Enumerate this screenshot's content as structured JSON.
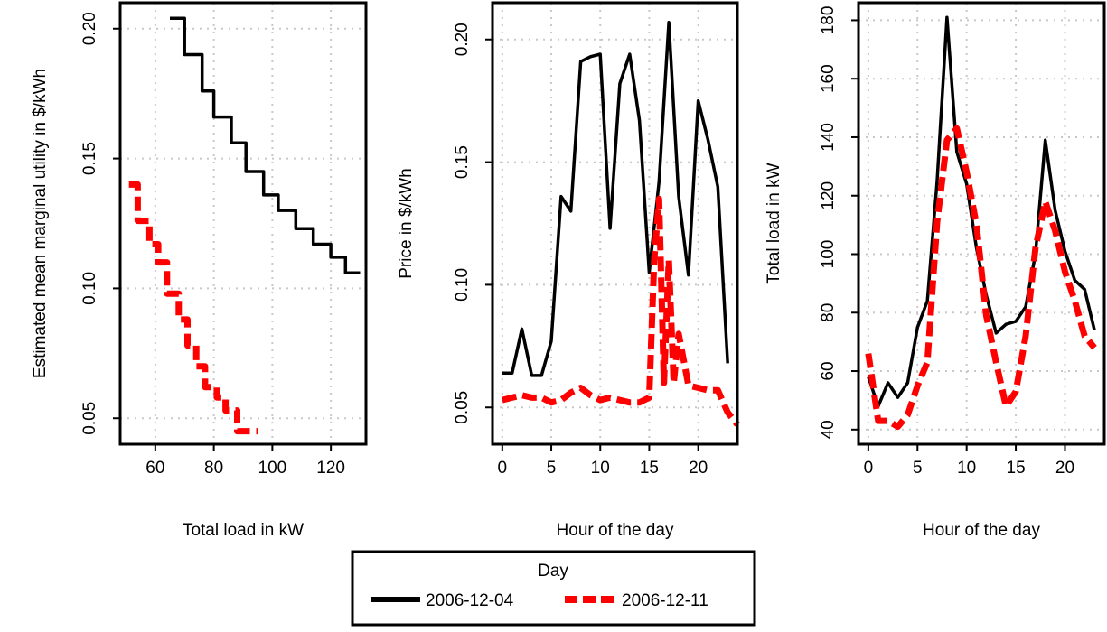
{
  "chart_data": [
    {
      "type": "line",
      "xlabel": "Total load in kW",
      "ylabel": "Estimated mean marginal utility in $/kWh",
      "xlim": [
        48,
        132
      ],
      "ylim": [
        0.04,
        0.21
      ],
      "xticks": [
        60,
        80,
        100,
        120
      ],
      "yticks": [
        0.05,
        0.1,
        0.15,
        0.2
      ],
      "ytick_labels": [
        "0.05",
        "0.10",
        "0.15",
        "0.20"
      ],
      "grid": true,
      "step": true,
      "series": [
        {
          "name": "2006-12-04",
          "color": "#000000",
          "x": [
            65,
            70,
            70,
            76,
            76,
            80,
            80,
            86,
            86,
            91,
            91,
            97,
            97,
            102,
            102,
            108,
            108,
            114,
            114,
            120,
            120,
            125,
            125,
            130
          ],
          "y": [
            0.204,
            0.204,
            0.19,
            0.19,
            0.176,
            0.176,
            0.166,
            0.166,
            0.156,
            0.156,
            0.145,
            0.145,
            0.136,
            0.136,
            0.13,
            0.13,
            0.123,
            0.123,
            0.117,
            0.117,
            0.112,
            0.112,
            0.106,
            0.106
          ]
        },
        {
          "name": "2006-12-11",
          "color": "#ff0000",
          "x": [
            51,
            54,
            54,
            58,
            58,
            61,
            61,
            64,
            64,
            68,
            68,
            71,
            71,
            74,
            74,
            77,
            77,
            81,
            81,
            84,
            84,
            88,
            88,
            91,
            91,
            95
          ],
          "y": [
            0.14,
            0.14,
            0.126,
            0.126,
            0.117,
            0.117,
            0.11,
            0.11,
            0.098,
            0.098,
            0.088,
            0.088,
            0.078,
            0.078,
            0.07,
            0.07,
            0.062,
            0.062,
            0.058,
            0.058,
            0.053,
            0.053,
            0.045,
            0.045,
            0.045,
            0.045
          ]
        }
      ]
    },
    {
      "type": "line",
      "xlabel": "Hour of the day",
      "ylabel": "Price in $/kWh",
      "xlim": [
        -1,
        24
      ],
      "ylim": [
        0.035,
        0.215
      ],
      "xticks": [
        0,
        5,
        10,
        15,
        20
      ],
      "yticks": [
        0.05,
        0.1,
        0.15,
        0.2
      ],
      "ytick_labels": [
        "0.05",
        "0.10",
        "0.15",
        "0.20"
      ],
      "grid": true,
      "series": [
        {
          "name": "2006-12-04",
          "color": "#000000",
          "x": [
            0,
            1,
            2,
            3,
            4,
            5,
            6,
            7,
            8,
            9,
            10,
            11,
            12,
            13,
            14,
            15,
            16,
            17,
            18,
            19,
            20,
            21,
            22,
            23
          ],
          "y": [
            0.064,
            0.064,
            0.082,
            0.063,
            0.063,
            0.077,
            0.136,
            0.13,
            0.191,
            0.193,
            0.194,
            0.123,
            0.182,
            0.194,
            0.167,
            0.105,
            0.142,
            0.207,
            0.136,
            0.104,
            0.175,
            0.159,
            0.14,
            0.068
          ]
        },
        {
          "name": "2006-12-11",
          "color": "#ff0000",
          "x": [
            0,
            1,
            2,
            3,
            4,
            5,
            6,
            7,
            8,
            9,
            10,
            11,
            12,
            13,
            14,
            15,
            15.5,
            16,
            16.5,
            17,
            17.5,
            18,
            19,
            20,
            21,
            22,
            23,
            24
          ],
          "y": [
            0.053,
            0.054,
            0.055,
            0.054,
            0.054,
            0.052,
            0.053,
            0.056,
            0.058,
            0.055,
            0.053,
            0.054,
            0.053,
            0.052,
            0.052,
            0.054,
            0.11,
            0.135,
            0.06,
            0.11,
            0.06,
            0.08,
            0.059,
            0.058,
            0.057,
            0.057,
            0.048,
            0.043
          ]
        }
      ]
    },
    {
      "type": "line",
      "xlabel": "Hour of the day",
      "ylabel": "Total load in kW",
      "xlim": [
        -1,
        24
      ],
      "ylim": [
        35,
        186
      ],
      "xticks": [
        0,
        5,
        10,
        15,
        20
      ],
      "yticks": [
        40,
        60,
        80,
        100,
        120,
        140,
        160,
        180
      ],
      "ytick_labels": [
        "40",
        "60",
        "80",
        "100",
        "120",
        "140",
        "160",
        "180"
      ],
      "grid": true,
      "series": [
        {
          "name": "2006-12-04",
          "color": "#000000",
          "x": [
            0,
            1,
            2,
            3,
            4,
            5,
            6,
            7,
            8,
            9,
            10,
            11,
            12,
            13,
            14,
            15,
            16,
            17,
            18,
            19,
            20,
            21,
            22,
            23
          ],
          "y": [
            58,
            48,
            56,
            51,
            56,
            75,
            84,
            125,
            181,
            135,
            124,
            102,
            86,
            73,
            76,
            77,
            82,
            100,
            139,
            115,
            101,
            91,
            88,
            74
          ]
        },
        {
          "name": "2006-12-11",
          "color": "#ff0000",
          "x": [
            0,
            1,
            2,
            3,
            4,
            5,
            6,
            7,
            8,
            9,
            10,
            11,
            12,
            13,
            14,
            15,
            16,
            17,
            18,
            19,
            20,
            21,
            22,
            23
          ],
          "y": [
            66,
            43,
            43,
            41,
            45,
            55,
            63,
            111,
            139,
            143,
            128,
            110,
            79,
            63,
            48,
            53,
            72,
            102,
            118,
            108,
            94,
            84,
            72,
            68
          ]
        }
      ]
    }
  ],
  "legend": {
    "title": "Day",
    "entries": [
      {
        "label": "2006-12-04",
        "color": "#000000"
      },
      {
        "label": "2006-12-11",
        "color": "#ff0000"
      }
    ]
  }
}
